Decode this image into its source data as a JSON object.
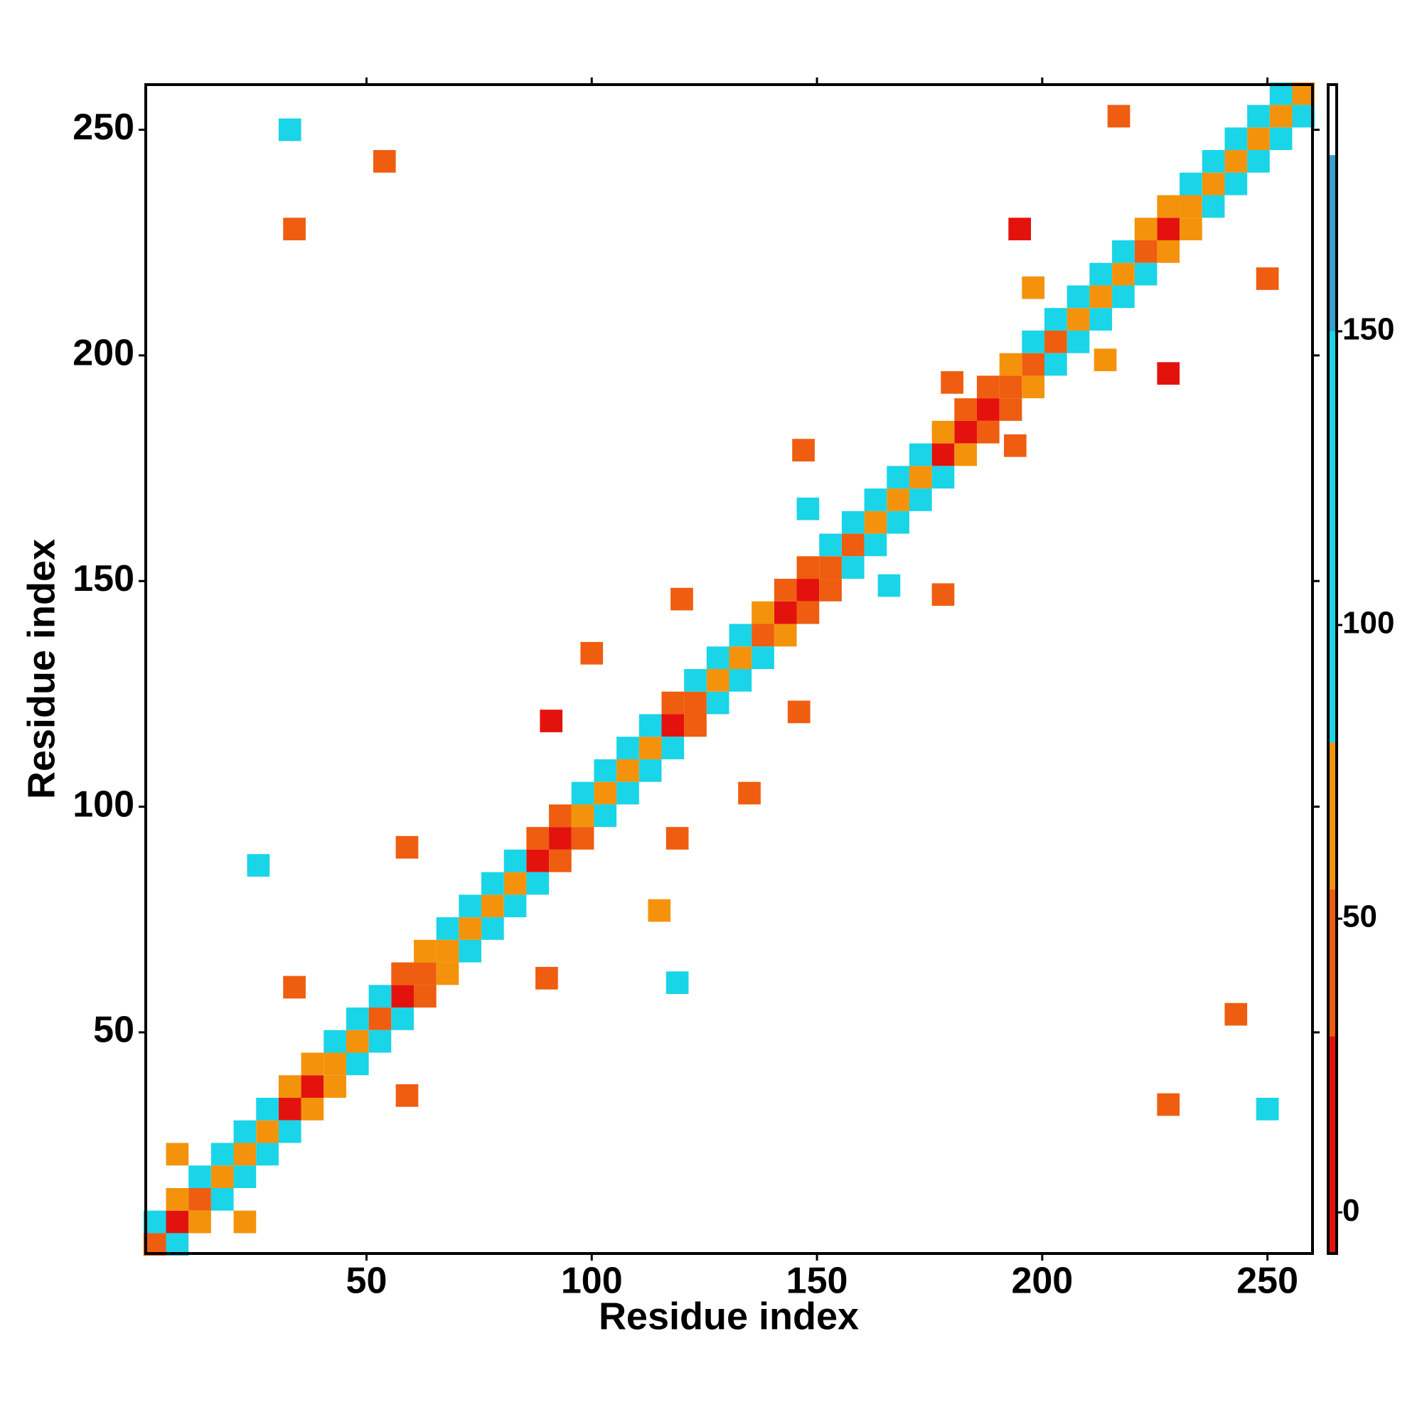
{
  "chart_data": {
    "type": "heatmap",
    "xlabel": "Residue index",
    "ylabel": "Residue index",
    "xlim": [
      1,
      260
    ],
    "ylim": [
      1,
      260
    ],
    "xticks": [
      50,
      100,
      150,
      200,
      250
    ],
    "yticks": [
      50,
      100,
      150,
      200,
      250
    ],
    "cells": {
      "x": [
        3,
        8,
        13,
        18,
        23,
        28,
        33,
        38,
        43,
        48,
        53,
        58,
        63,
        68,
        73,
        78,
        83,
        88,
        93,
        98,
        103,
        108,
        113,
        118,
        123,
        128,
        133,
        138,
        143,
        148,
        153,
        158,
        163,
        168,
        173,
        178,
        183,
        188,
        193,
        198,
        203,
        208,
        213,
        218,
        223,
        228,
        233,
        238,
        243,
        248,
        253,
        258,
        3,
        8,
        13,
        18,
        23,
        28,
        33,
        38,
        43,
        48,
        53,
        58,
        63,
        68,
        73,
        78,
        83,
        88,
        93,
        98,
        103,
        108,
        113,
        118,
        123,
        128,
        133,
        138,
        143,
        148,
        153,
        158,
        163,
        168,
        173,
        178,
        183,
        188,
        193,
        198,
        203,
        208,
        213,
        218,
        223,
        228,
        233,
        238,
        243,
        248,
        253,
        8,
        13,
        18,
        23,
        28,
        33,
        38,
        43,
        48,
        53,
        58,
        63,
        68,
        73,
        78,
        83,
        88,
        93,
        98,
        103,
        108,
        113,
        118,
        123,
        128,
        133,
        138,
        143,
        148,
        153,
        158,
        163,
        168,
        173,
        178,
        183,
        188,
        193,
        198,
        203,
        208,
        213,
        218,
        223,
        228,
        233,
        238,
        243,
        248,
        253,
        258,
        34,
        228,
        54,
        243,
        59,
        90,
        59,
        34,
        119,
        91,
        120,
        146,
        178,
        147,
        180,
        194,
        195,
        228,
        217,
        250,
        166,
        148,
        100,
        135,
        198,
        214,
        26,
        33,
        250,
        119,
        115,
        23,
        8
      ],
      "y": [
        3,
        8,
        13,
        18,
        23,
        28,
        33,
        38,
        43,
        48,
        53,
        58,
        63,
        68,
        73,
        78,
        83,
        88,
        93,
        98,
        103,
        108,
        113,
        118,
        123,
        128,
        133,
        138,
        143,
        148,
        153,
        158,
        163,
        168,
        173,
        178,
        183,
        188,
        193,
        198,
        203,
        208,
        213,
        218,
        223,
        228,
        233,
        238,
        243,
        248,
        253,
        258,
        8,
        13,
        18,
        23,
        28,
        33,
        38,
        43,
        48,
        53,
        58,
        63,
        68,
        73,
        78,
        83,
        88,
        93,
        98,
        103,
        108,
        113,
        118,
        123,
        128,
        133,
        138,
        143,
        148,
        153,
        158,
        163,
        168,
        173,
        178,
        183,
        188,
        193,
        198,
        203,
        208,
        213,
        218,
        223,
        228,
        233,
        238,
        243,
        248,
        253,
        258,
        3,
        8,
        13,
        18,
        23,
        28,
        33,
        38,
        43,
        48,
        53,
        58,
        63,
        68,
        73,
        78,
        83,
        88,
        93,
        98,
        103,
        108,
        113,
        118,
        123,
        128,
        133,
        138,
        143,
        148,
        153,
        158,
        163,
        168,
        173,
        178,
        183,
        188,
        193,
        198,
        203,
        208,
        213,
        218,
        223,
        228,
        233,
        238,
        243,
        248,
        253,
        228,
        34,
        243,
        54,
        91,
        62,
        36,
        60,
        93,
        119,
        146,
        121,
        147,
        179,
        194,
        180,
        228,
        196,
        253,
        217,
        149,
        166,
        134,
        103,
        215,
        199,
        87,
        250,
        33,
        61,
        77,
        8,
        23
      ],
      "values": [
        40,
        20,
        45,
        55,
        60,
        60,
        25,
        20,
        60,
        60,
        50,
        15,
        40,
        60,
        60,
        60,
        55,
        20,
        15,
        55,
        60,
        60,
        55,
        20,
        50,
        60,
        55,
        40,
        15,
        10,
        45,
        50,
        60,
        60,
        60,
        20,
        15,
        20,
        30,
        50,
        45,
        55,
        60,
        60,
        40,
        25,
        60,
        60,
        60,
        60,
        60,
        60,
        90,
        70,
        100,
        100,
        105,
        100,
        70,
        60,
        100,
        100,
        95,
        40,
        70,
        100,
        105,
        100,
        95,
        40,
        50,
        100,
        105,
        100,
        95,
        50,
        100,
        105,
        100,
        70,
        40,
        30,
        95,
        100,
        105,
        100,
        100,
        60,
        40,
        40,
        60,
        80,
        90,
        95,
        100,
        100,
        70,
        60,
        105,
        100,
        100,
        100,
        95,
        90,
        70,
        100,
        100,
        105,
        100,
        70,
        60,
        100,
        100,
        95,
        40,
        70,
        100,
        105,
        100,
        95,
        40,
        50,
        100,
        105,
        100,
        95,
        50,
        100,
        105,
        100,
        70,
        40,
        30,
        95,
        100,
        105,
        100,
        100,
        60,
        40,
        40,
        60,
        80,
        90,
        95,
        100,
        100,
        70,
        60,
        105,
        100,
        100,
        100,
        95,
        30,
        30,
        40,
        35,
        30,
        30,
        30,
        35,
        30,
        25,
        30,
        30,
        30,
        30,
        35,
        35,
        25,
        25,
        40,
        40,
        100,
        100,
        40,
        40,
        70,
        70,
        100,
        105,
        105,
        100,
        60,
        60,
        60
      ]
    },
    "colorbar": {
      "lim": [
        -7,
        192
      ],
      "ticks": [
        0,
        50,
        100,
        150
      ],
      "bins": [
        {
          "from": -7,
          "to": 30,
          "color": "#e3120d"
        },
        {
          "from": 30,
          "to": 55,
          "color": "#ef5d10"
        },
        {
          "from": 55,
          "to": 80,
          "color": "#f4930b"
        },
        {
          "from": 80,
          "to": 150,
          "color": "#1ad4e8"
        },
        {
          "from": 150,
          "to": 180,
          "color": "#3a9fcc"
        }
      ]
    }
  }
}
